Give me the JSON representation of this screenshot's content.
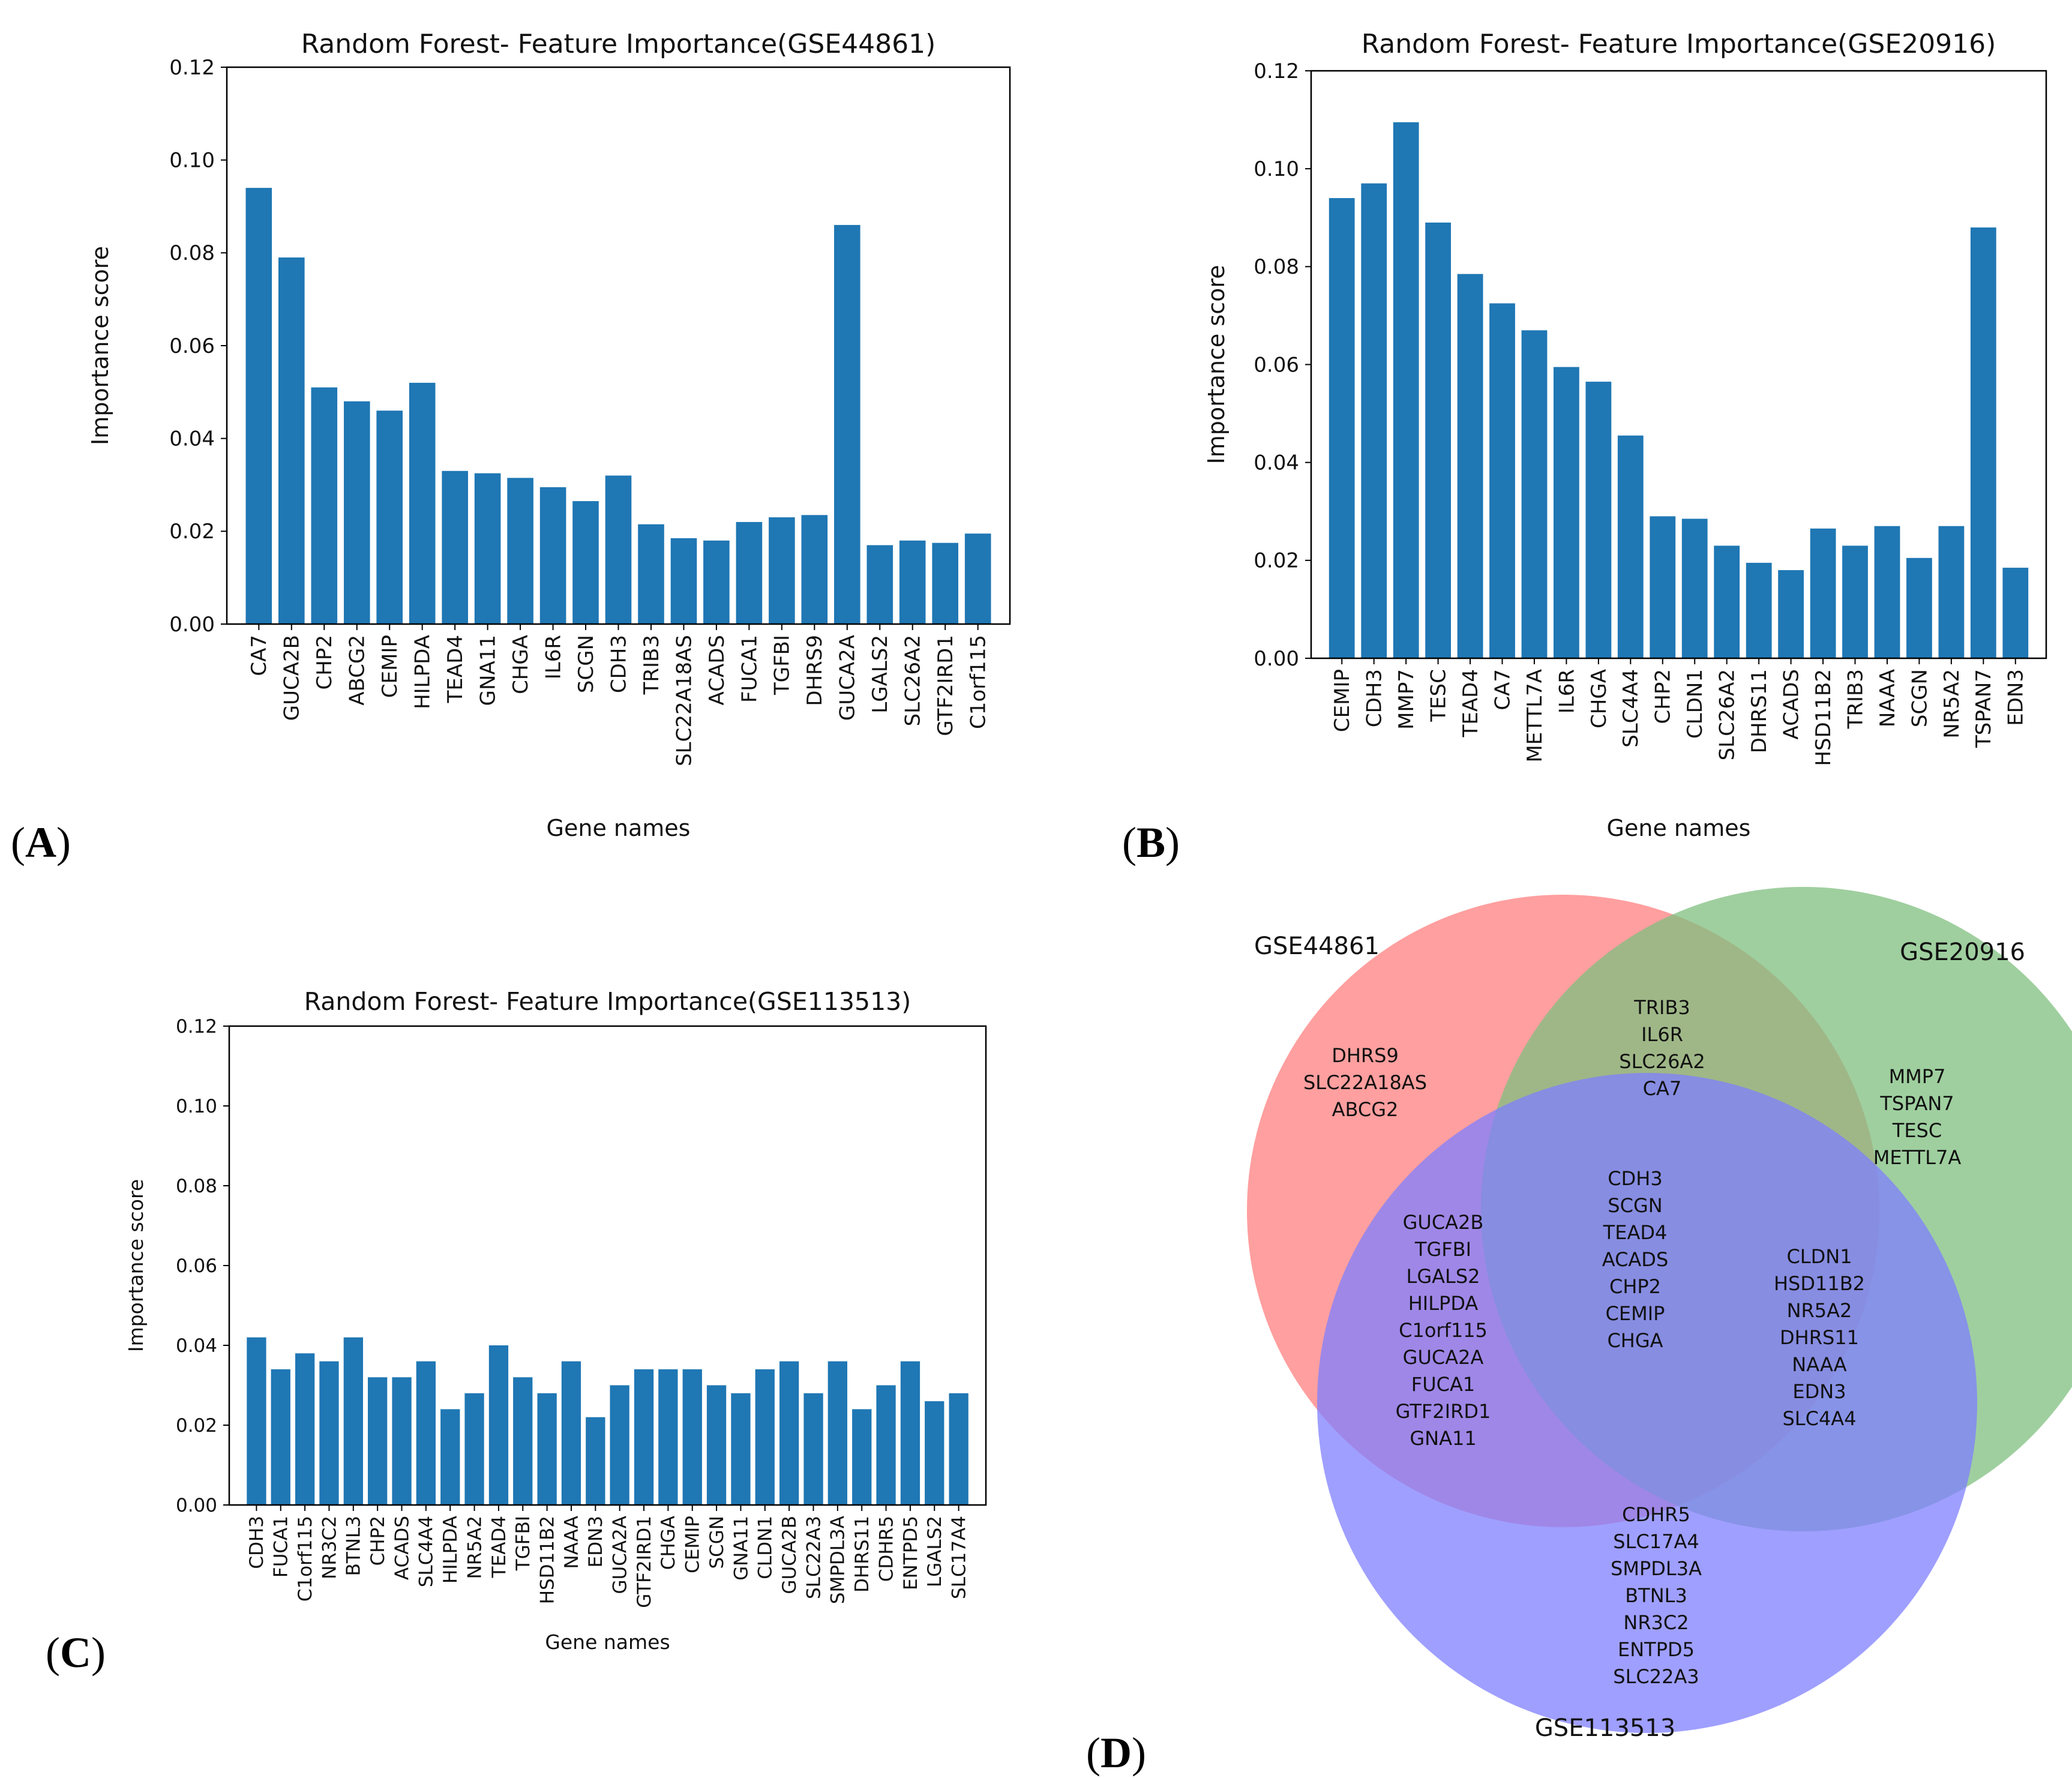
{
  "colors": {
    "bar": "#1f77b4",
    "venn_a": "#ff7f7f",
    "venn_b": "#7fbf7f",
    "venn_c": "#7f7fff"
  },
  "panel_labels": {
    "a": "A",
    "b": "B",
    "c": "C",
    "d": "D"
  },
  "chart_data": [
    {
      "type": "bar",
      "title": "Random Forest- Feature Importance(GSE44861)",
      "xlabel": "Gene names",
      "ylabel": "Importance score",
      "ylim": [
        0,
        0.12
      ],
      "yticks": [
        "0.00",
        "0.02",
        "0.04",
        "0.06",
        "0.08",
        "0.10",
        "0.12"
      ],
      "categories": [
        "CA7",
        "GUCA2B",
        "CHP2",
        "ABCG2",
        "CEMIP",
        "HILPDA",
        "TEAD4",
        "GNA11",
        "CHGA",
        "IL6R",
        "SCGN",
        "CDH3",
        "TRIB3",
        "SLC22A18AS",
        "ACADS",
        "FUCA1",
        "TGFBI",
        "DHRS9",
        "GUCA2A",
        "LGALS2",
        "SLC26A2",
        "GTF2IRD1",
        "C1orf115"
      ],
      "values": [
        0.094,
        0.079,
        0.051,
        0.048,
        0.046,
        0.052,
        0.033,
        0.0325,
        0.0315,
        0.0295,
        0.0265,
        0.032,
        0.0215,
        0.0185,
        0.018,
        0.022,
        0.023,
        0.0235,
        0.086,
        0.017,
        0.018,
        0.0175,
        0.0195
      ]
    },
    {
      "type": "bar",
      "title": "Random Forest- Feature Importance(GSE20916)",
      "xlabel": "Gene names",
      "ylabel": "Importance score",
      "ylim": [
        0,
        0.12
      ],
      "yticks": [
        "0.00",
        "0.02",
        "0.04",
        "0.06",
        "0.08",
        "0.10",
        "0.12"
      ],
      "categories": [
        "CEMIP",
        "CDH3",
        "MMP7",
        "TESC",
        "TEAD4",
        "CA7",
        "METTL7A",
        "IL6R",
        "CHGA",
        "SLC4A4",
        "CHP2",
        "CLDN1",
        "SLC26A2",
        "DHRS11",
        "ACADS",
        "HSD11B2",
        "TRIB3",
        "NAAA",
        "SCGN",
        "NR5A2",
        "TSPAN7",
        "EDN3"
      ],
      "values": [
        0.094,
        0.097,
        0.1095,
        0.089,
        0.0785,
        0.0725,
        0.067,
        0.0595,
        0.0565,
        0.0455,
        0.029,
        0.0285,
        0.023,
        0.0195,
        0.018,
        0.0265,
        0.023,
        0.027,
        0.0205,
        0.027,
        0.088,
        0.0185
      ]
    },
    {
      "type": "bar",
      "title": "Random Forest- Feature Importance(GSE113513)",
      "xlabel": "Gene names",
      "ylabel": "Importance score",
      "ylim": [
        0,
        0.12
      ],
      "yticks": [
        "0.00",
        "0.02",
        "0.04",
        "0.06",
        "0.08",
        "0.10",
        "0.12"
      ],
      "categories": [
        "CDH3",
        "FUCA1",
        "C1orf115",
        "NR3C2",
        "BTNL3",
        "CHP2",
        "ACADS",
        "SLC4A4",
        "HILPDA",
        "NR5A2",
        "TEAD4",
        "TGFBI",
        "HSD11B2",
        "NAAA",
        "EDN3",
        "GUCA2A",
        "GTF2IRD1",
        "CHGA",
        "CEMIP",
        "SCGN",
        "GNA11",
        "CLDN1",
        "GUCA2B",
        "SLC22A3",
        "SMPDL3A",
        "DHRS11",
        "CDHR5",
        "ENTPD5",
        "LGALS2",
        "SLC17A4"
      ],
      "values": [
        0.042,
        0.034,
        0.038,
        0.036,
        0.042,
        0.032,
        0.032,
        0.036,
        0.024,
        0.028,
        0.04,
        0.032,
        0.028,
        0.036,
        0.022,
        0.03,
        0.034,
        0.034,
        0.034,
        0.03,
        0.028,
        0.034,
        0.036,
        0.028,
        0.036,
        0.024,
        0.03,
        0.036,
        0.026,
        0.028
      ]
    }
  ],
  "venn": {
    "sets": [
      "GSE44861",
      "GSE20916",
      "GSE113513"
    ],
    "regions": {
      "a_only": [
        "DHRS9",
        "SLC22A18AS",
        "ABCG2"
      ],
      "b_only": [
        "MMP7",
        "TSPAN7",
        "TESC",
        "METTL7A"
      ],
      "ab": [
        "TRIB3",
        "IL6R",
        "SLC26A2",
        "CA7"
      ],
      "abc": [
        "CDH3",
        "SCGN",
        "TEAD4",
        "ACADS",
        "CHP2",
        "CEMIP",
        "CHGA"
      ],
      "ac": [
        "GUCA2B",
        "TGFBI",
        "LGALS2",
        "HILPDA",
        "C1orf115",
        "GUCA2A",
        "FUCA1",
        "GTF2IRD1",
        "GNA11"
      ],
      "bc": [
        "CLDN1",
        "HSD11B2",
        "NR5A2",
        "DHRS11",
        "NAAA",
        "EDN3",
        "SLC4A4"
      ],
      "c_only": [
        "CDHR5",
        "SLC17A4",
        "SMPDL3A",
        "BTNL3",
        "NR3C2",
        "ENTPD5",
        "SLC22A3"
      ]
    }
  }
}
